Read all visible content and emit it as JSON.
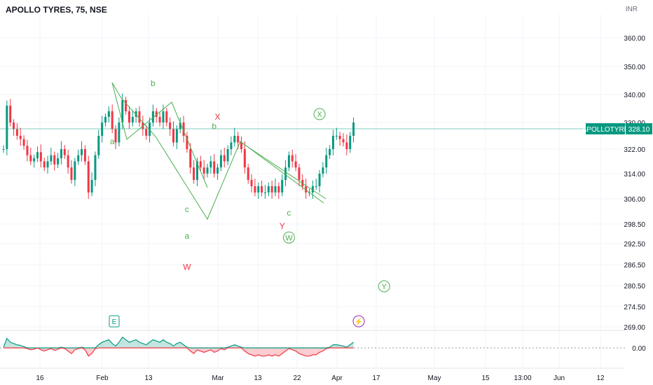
{
  "header": {
    "title": "APOLLO TYRES, 75, NSE",
    "currency": "INR"
  },
  "price_tag": {
    "label": "APOLLOTYRE",
    "value": "328.10",
    "color": "#089981"
  },
  "colors": {
    "up": "#089981",
    "down": "#f23645",
    "wave_green": "#4caf50",
    "wave_red": "#f23645",
    "event_purple": "#9c27b0"
  },
  "chart_data": {
    "type": "candlestick",
    "y_ticks": [
      "360.00",
      "350.00",
      "340.00",
      "330.00",
      "322.00",
      "314.00",
      "306.00",
      "298.50",
      "292.50",
      "286.50",
      "280.50",
      "274.50",
      "269.00"
    ],
    "x_ticks": [
      "16",
      "Feb",
      "13",
      "Mar",
      "13",
      "22",
      "Apr",
      "17",
      "May",
      "15",
      "13:00",
      "Jun",
      "12"
    ],
    "last_price": 328.1,
    "close_series": [
      322,
      336,
      330,
      328,
      326,
      325,
      323,
      320,
      318,
      319,
      321,
      318,
      316,
      318,
      320,
      317,
      319,
      322,
      320,
      316,
      312,
      318,
      320,
      322,
      318,
      308,
      312,
      320,
      326,
      330,
      332,
      334,
      328,
      324,
      330,
      338,
      334,
      330,
      332,
      334,
      330,
      328,
      326,
      330,
      334,
      332,
      330,
      334,
      330,
      328,
      324,
      328,
      330,
      326,
      322,
      316,
      312,
      318,
      316,
      314,
      316,
      318,
      314,
      316,
      320,
      318,
      322,
      324,
      326,
      324,
      322,
      316,
      312,
      310,
      308,
      310,
      308,
      308,
      310,
      308,
      310,
      308,
      312,
      316,
      320,
      318,
      316,
      312,
      310,
      308,
      308,
      310,
      310,
      314,
      316,
      320,
      322,
      326,
      326,
      325,
      324,
      322,
      326,
      330
    ],
    "wave_labels": [
      {
        "text": "a",
        "price": 323.5,
        "bar": 32,
        "color": "green"
      },
      {
        "text": "b",
        "price": 343,
        "bar": 44,
        "color": "green"
      },
      {
        "text": "c",
        "price": 302,
        "bar": 54,
        "color": "green"
      },
      {
        "text": "a",
        "price": 294,
        "bar": 54,
        "color": "green"
      },
      {
        "text": "W",
        "price": 285,
        "bar": 54,
        "color": "red"
      },
      {
        "text": "X",
        "price": 331,
        "bar": 63,
        "color": "red"
      },
      {
        "text": "b",
        "price": 328,
        "bar": 62,
        "color": "green"
      },
      {
        "text": "c",
        "price": 301,
        "bar": 84,
        "color": "green"
      },
      {
        "text": "Y",
        "price": 297,
        "bar": 82,
        "color": "red"
      }
    ],
    "circled_labels": [
      {
        "text": "X",
        "price": 332,
        "bar": 93
      },
      {
        "text": "W",
        "price": 293.5,
        "bar": 84
      },
      {
        "text": "Y",
        "price": 279.5,
        "bar": 112
      }
    ],
    "event_markers": [
      {
        "text": "E"
      },
      {
        "text": "⚡"
      }
    ],
    "oscillator": {
      "zero_label": "0.00"
    }
  }
}
